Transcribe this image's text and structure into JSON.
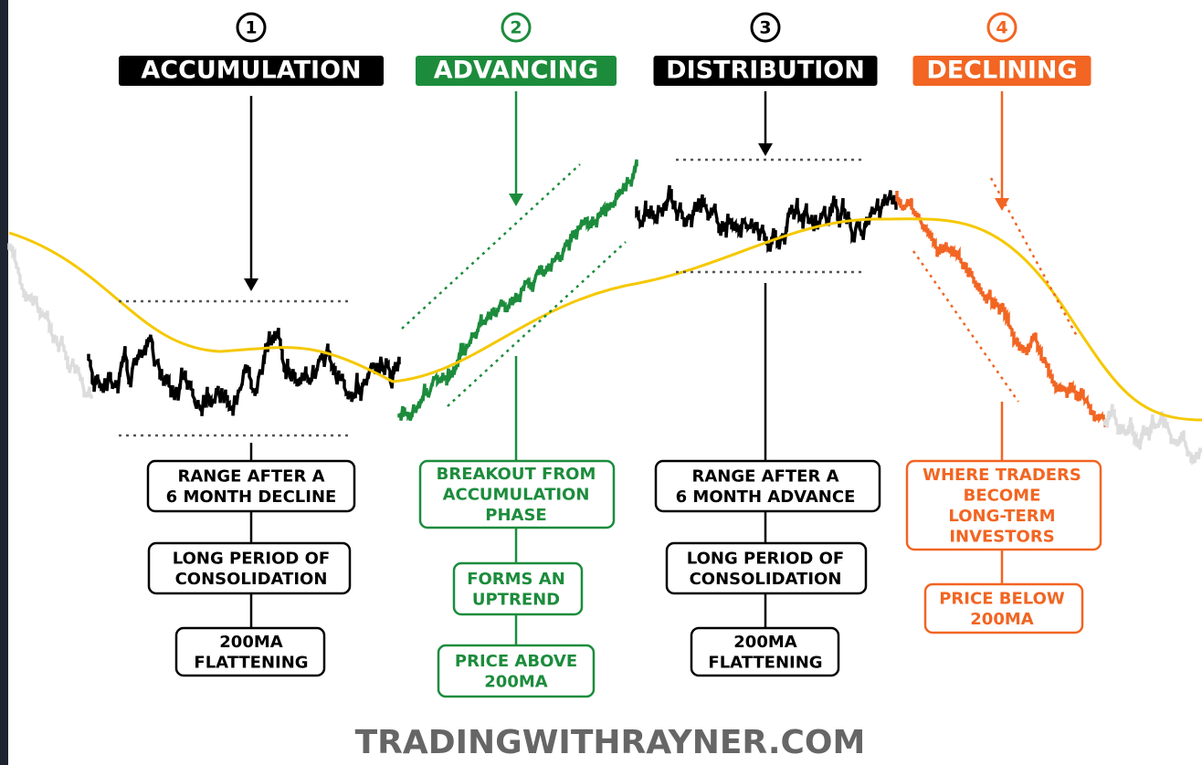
{
  "phases": [
    {
      "number": "1",
      "title": "ACCUMULATION",
      "notes": [
        [
          "RANGE AFTER A",
          "6 MONTH DECLINE"
        ],
        [
          "LONG PERIOD OF",
          "CONSOLIDATION"
        ],
        [
          "200MA",
          "FLATTENING"
        ]
      ]
    },
    {
      "number": "2",
      "title": "ADVANCING",
      "notes": [
        [
          "BREAKOUT FROM",
          "ACCUMULATION",
          "PHASE"
        ],
        [
          "FORMS AN",
          "UPTREND"
        ],
        [
          "PRICE ABOVE",
          "200MA"
        ]
      ]
    },
    {
      "number": "3",
      "title": "DISTRIBUTION",
      "notes": [
        [
          "RANGE AFTER A",
          "6 MONTH ADVANCE"
        ],
        [
          "LONG PERIOD OF",
          "CONSOLIDATION"
        ],
        [
          "200MA",
          "FLATTENING"
        ]
      ]
    },
    {
      "number": "4",
      "title": "DECLINING",
      "notes": [
        [
          "WHERE TRADERS",
          "BECOME",
          "LONG-TERM",
          "INVESTORS"
        ],
        [
          "PRICE BELOW",
          "200MA"
        ]
      ]
    }
  ],
  "footer": "TRADINGWITHRAYNER.COM"
}
